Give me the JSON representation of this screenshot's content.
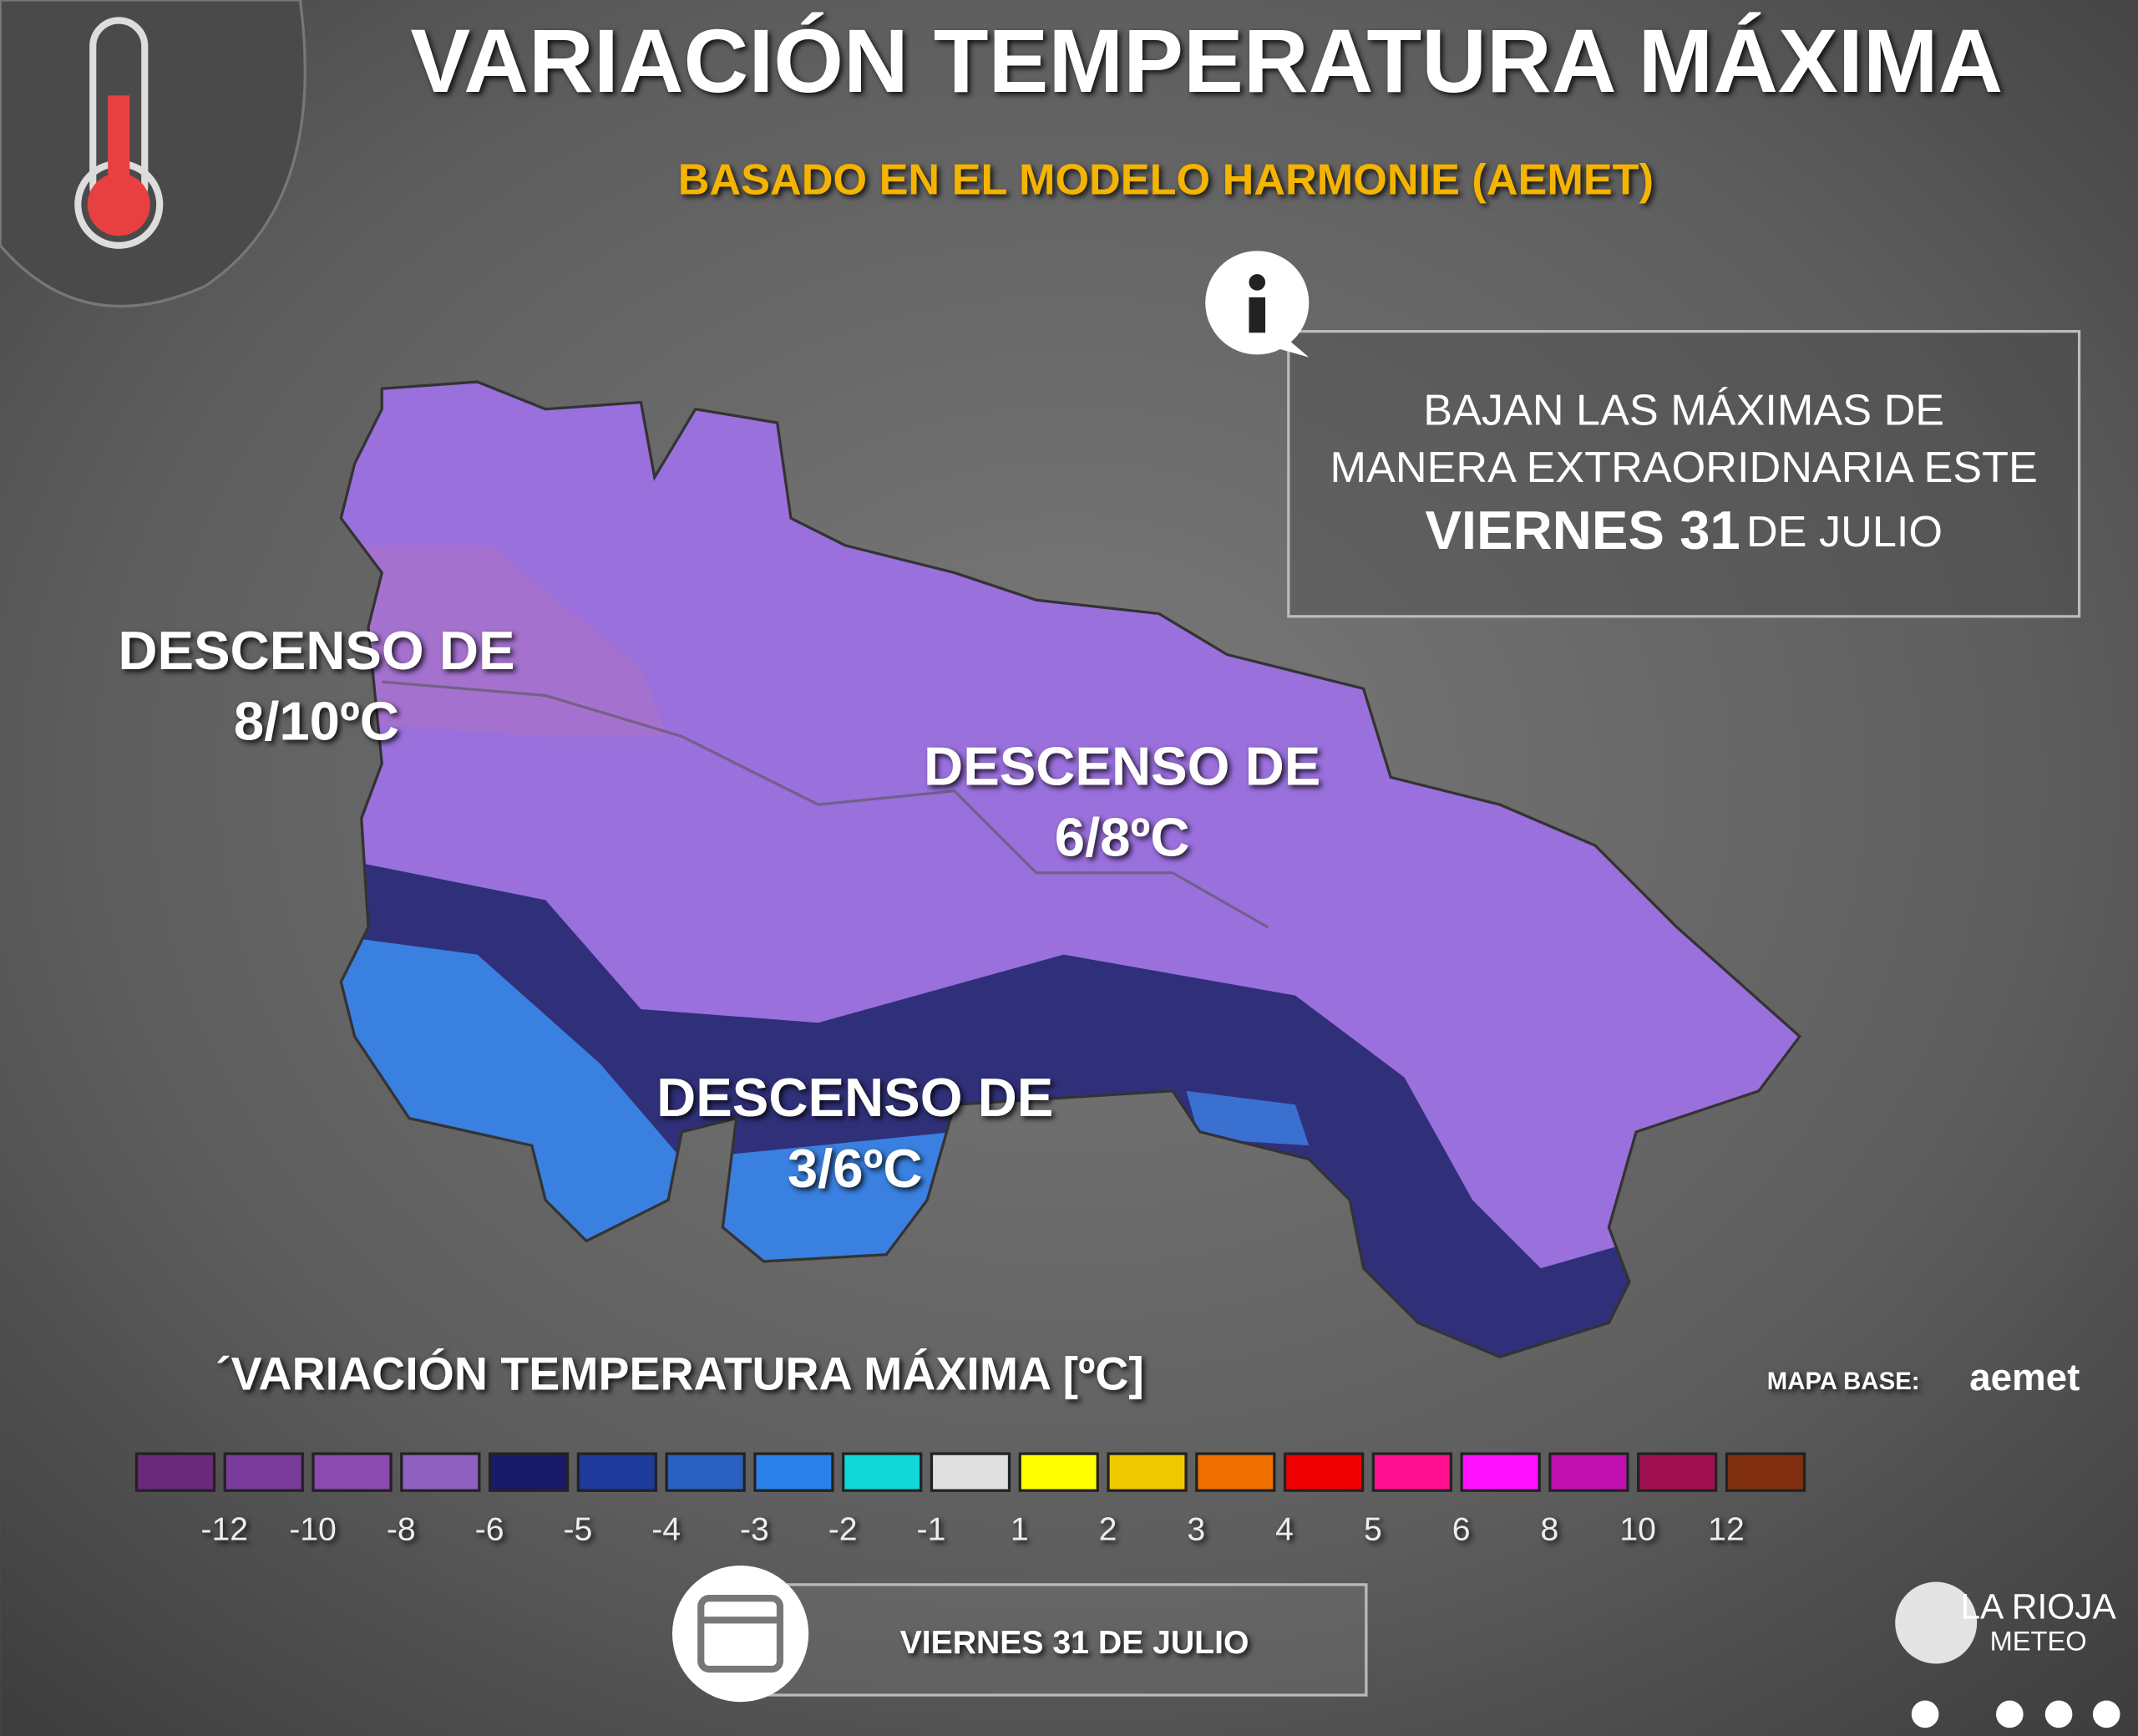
{
  "header": {
    "title": "VARIACIÓN TEMPERATURA MÁXIMA",
    "subtitle": "BASADO EN EL MODELO HARMONIE (AEMET)"
  },
  "info": {
    "lines": [
      "BAJAN LAS MÁXIMAS DE",
      "MANERA EXTRAORIDNARIA ESTE"
    ],
    "highlight": "VIERNES 31",
    "rest": "DE JULIO"
  },
  "map_labels": [
    {
      "lines": [
        "DESCENSO DE",
        "8/10ºC"
      ]
    },
    {
      "lines": [
        "DESCENSO DE",
        "6/8ºC"
      ]
    },
    {
      "lines": [
        "DESCENSO DE",
        "3/6ºC"
      ]
    }
  ],
  "legend": {
    "title": "´VARIACIÓN TEMPERATURA MÁXIMA [ºC]",
    "colors": [
      "#6a2a7a",
      "#7a3a9a",
      "#8a4ab0",
      "#9060c0",
      "#1a1a6a",
      "#1e3a9a",
      "#2a60c0",
      "#2a80e8",
      "#10d8d8",
      "#e0e0e0",
      "#ffff00",
      "#f0c800",
      "#f07000",
      "#f00000",
      "#ff1090",
      "#ff10ff",
      "#c010b0",
      "#a01050",
      "#803010"
    ],
    "labels": [
      -12,
      -10,
      -8,
      -6,
      -5,
      -4,
      -3,
      -2,
      -1,
      1,
      2,
      3,
      4,
      5,
      6,
      8,
      10,
      12
    ]
  },
  "credit": {
    "label": "MAPA BASE:",
    "source": "aemet"
  },
  "date": "VIERNES 31 DE JULIO",
  "brand": {
    "name": "LA RIOJA",
    "sub": "METEO"
  }
}
